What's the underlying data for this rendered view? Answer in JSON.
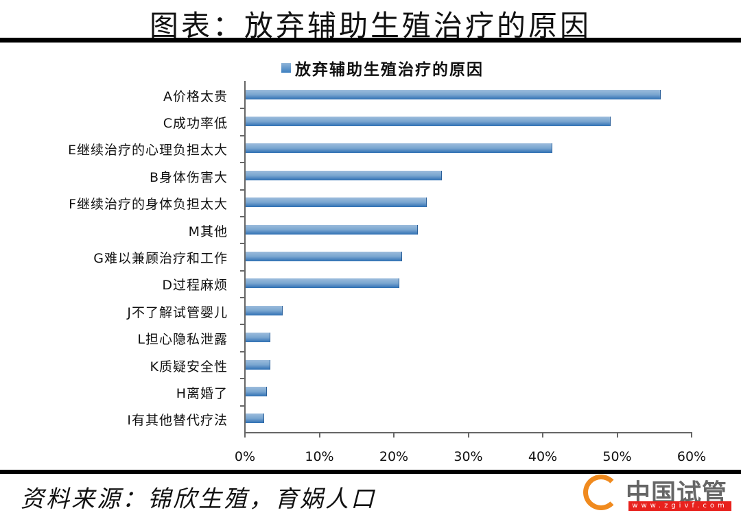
{
  "header": {
    "title": "图表：放弃辅助生殖治疗的原因"
  },
  "legend": {
    "label": "放弃辅助生殖治疗的原因",
    "color": "#4f81bd"
  },
  "footer": {
    "source": "资料来源：锦欣生殖，育娲人口",
    "logo_text": "中国试管",
    "logo_url": "www.zgivf.com"
  },
  "chart_data": {
    "type": "bar",
    "orientation": "horizontal",
    "title": "放弃辅助生殖治疗的原因",
    "xlabel": "",
    "ylabel": "",
    "xlim": [
      0,
      60
    ],
    "x_ticks": [
      "0%",
      "10%",
      "20%",
      "30%",
      "40%",
      "50%",
      "60%"
    ],
    "legend_position": "top",
    "grid": false,
    "categories": [
      "A价格太贵",
      "C成功率低",
      "E继续治疗的心理负担太大",
      "B身体伤害大",
      "F继续治疗的身体负担太大",
      "M其他",
      "G难以兼顾治疗和工作",
      "D过程麻烦",
      "J不了解试管婴儿",
      "L担心隐私泄露",
      "K质疑安全性",
      "H离婚了",
      "I有其他替代疗法"
    ],
    "series": [
      {
        "name": "放弃辅助生殖治疗的原因",
        "values": [
          55.8,
          49.0,
          41.2,
          26.4,
          24.3,
          23.1,
          21.0,
          20.6,
          5.0,
          3.3,
          3.3,
          2.9,
          2.5
        ]
      }
    ]
  }
}
